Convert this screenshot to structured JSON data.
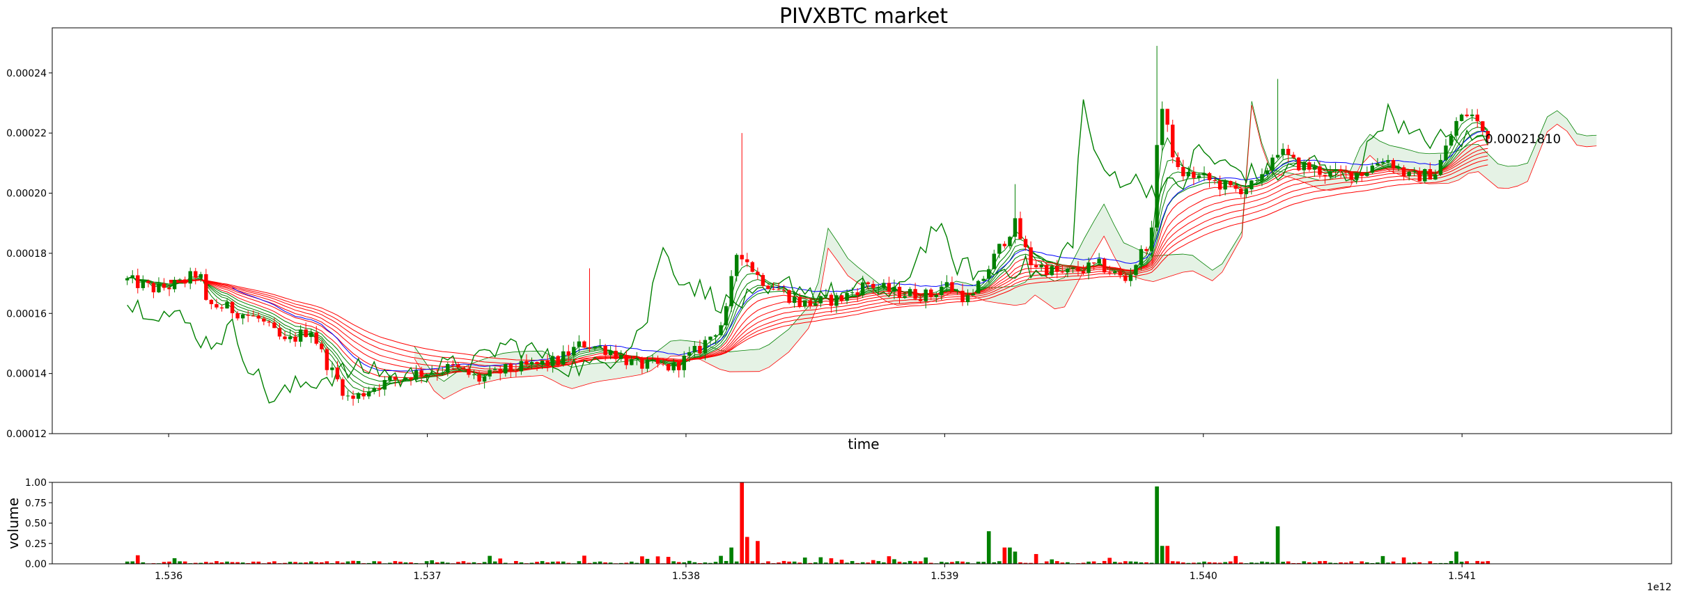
{
  "chart_data": [
    {
      "type": "candlestick",
      "title": "PIVXBTC market",
      "xlabel": "time",
      "ylabel": "",
      "xlim": [
        1535.55,
        1541.81
      ],
      "ylim": [
        0.00012,
        0.000255
      ],
      "yticks": [
        "0.00012",
        "0.00014",
        "0.00016",
        "0.00018",
        "0.00020",
        "0.00022",
        "0.00024"
      ],
      "ytick_values": [
        0.00012,
        0.00014,
        0.00016,
        0.00018,
        0.0002,
        0.00022,
        0.00024
      ],
      "xtick_values": [
        1536,
        1537,
        1538,
        1539,
        1540,
        1541
      ],
      "last_price_label": "0.00021810",
      "last_price": 0.0002181,
      "colors": {
        "up": "#008000",
        "down": "#ff0000",
        "ema": "#ff0000",
        "line_blue": "#0000ff",
        "line_green": "#008000",
        "cloud": "#cfe8cf"
      },
      "price_path": [
        [
          1535.84,
          0.000171
        ],
        [
          1535.95,
          0.000168
        ],
        [
          1536.05,
          0.00017
        ],
        [
          1536.12,
          0.000174
        ],
        [
          1536.14,
          0.000163
        ],
        [
          1536.22,
          0.000162
        ],
        [
          1536.35,
          0.000158
        ],
        [
          1536.45,
          0.00015
        ],
        [
          1536.55,
          0.000155
        ],
        [
          1536.6,
          0.000145
        ],
        [
          1536.7,
          0.000131
        ],
        [
          1536.8,
          0.000136
        ],
        [
          1536.95,
          0.00014
        ],
        [
          1537.1,
          0.000142
        ],
        [
          1537.2,
          0.000138
        ],
        [
          1537.3,
          0.000141
        ],
        [
          1537.5,
          0.000144
        ],
        [
          1537.6,
          0.00015
        ],
        [
          1537.7,
          0.000148
        ],
        [
          1537.8,
          0.000143
        ],
        [
          1537.95,
          0.000142
        ],
        [
          1538.05,
          0.000148
        ],
        [
          1538.15,
          0.000158
        ],
        [
          1538.2,
          0.000182
        ],
        [
          1538.28,
          0.000172
        ],
        [
          1538.45,
          0.000163
        ],
        [
          1538.6,
          0.000165
        ],
        [
          1538.7,
          0.00017
        ],
        [
          1538.8,
          0.000167
        ],
        [
          1538.95,
          0.000166
        ],
        [
          1539.0,
          0.00017
        ],
        [
          1539.1,
          0.000164
        ],
        [
          1539.2,
          0.00018
        ],
        [
          1539.27,
          0.00019
        ],
        [
          1539.33,
          0.000177
        ],
        [
          1539.45,
          0.000173
        ],
        [
          1539.6,
          0.000176
        ],
        [
          1539.7,
          0.000171
        ],
        [
          1539.8,
          0.000186
        ],
        [
          1539.83,
          0.000232
        ],
        [
          1539.9,
          0.000207
        ],
        [
          1540.0,
          0.000205
        ],
        [
          1540.12,
          0.000201
        ],
        [
          1540.22,
          0.000203
        ],
        [
          1540.28,
          0.000215
        ],
        [
          1540.35,
          0.00021
        ],
        [
          1540.5,
          0.000206
        ],
        [
          1540.62,
          0.000207
        ],
        [
          1540.7,
          0.000212
        ],
        [
          1540.8,
          0.000205
        ],
        [
          1540.9,
          0.000207
        ],
        [
          1540.98,
          0.000224
        ],
        [
          1541.03,
          0.000227
        ],
        [
          1541.1,
          0.000218
        ]
      ]
    },
    {
      "type": "bar",
      "title": "",
      "xlabel": "",
      "ylabel": "volume",
      "xlim": [
        1535.55,
        1541.81
      ],
      "ylim": [
        0,
        1.0
      ],
      "yticks": [
        "0.00",
        "0.25",
        "0.50",
        "0.75",
        "1.00"
      ],
      "ytick_values": [
        0,
        0.25,
        0.5,
        0.75,
        1.0
      ],
      "xticks": [
        "1.536",
        "1.537",
        "1.538",
        "1.539",
        "1.540",
        "1.541"
      ],
      "xtick_values": [
        1536,
        1537,
        1538,
        1539,
        1540,
        1541
      ],
      "offset_label": "1e12",
      "spikes": [
        [
          1537.6,
          0.1
        ],
        [
          1538.18,
          0.2
        ],
        [
          1538.21,
          1.0
        ],
        [
          1538.23,
          0.33
        ],
        [
          1538.27,
          0.28
        ],
        [
          1539.17,
          0.4
        ],
        [
          1539.24,
          0.2
        ],
        [
          1539.27,
          0.15
        ],
        [
          1539.35,
          0.12
        ],
        [
          1539.82,
          0.95
        ],
        [
          1539.85,
          0.22
        ],
        [
          1540.28,
          0.46
        ],
        [
          1540.98,
          0.15
        ]
      ]
    }
  ]
}
